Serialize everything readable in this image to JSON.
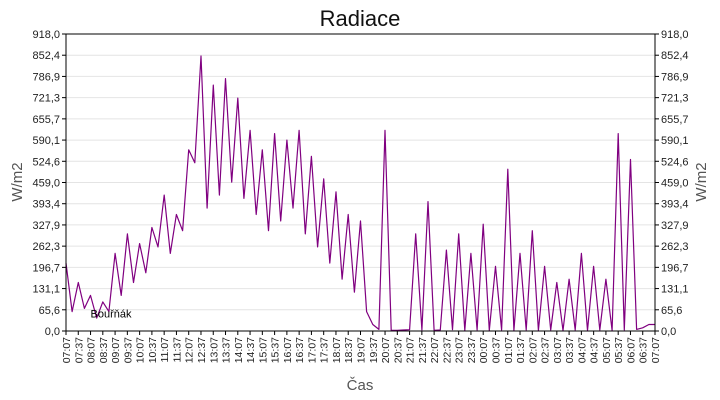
{
  "chart_data": {
    "type": "line",
    "title": "Radiace",
    "xlabel": "Čas",
    "ylabel": "W/m2",
    "ylabel_right": "W/m2",
    "ylim": [
      0,
      918
    ],
    "y_ticks": [
      "0,0",
      "65,6",
      "131,1",
      "196,7",
      "262,3",
      "327,9",
      "393,4",
      "459,0",
      "524,6",
      "590,1",
      "655,7",
      "721,3",
      "786,9",
      "852,4",
      "918,0"
    ],
    "x_ticks": [
      "07:07",
      "07:37",
      "08:07",
      "08:37",
      "09:07",
      "09:37",
      "10:07",
      "10:37",
      "11:07",
      "11:37",
      "12:07",
      "12:37",
      "13:07",
      "13:37",
      "14:07",
      "14:37",
      "15:07",
      "15:37",
      "16:07",
      "16:37",
      "17:07",
      "17:37",
      "18:07",
      "18:37",
      "19:07",
      "19:37",
      "20:07",
      "20:37",
      "21:07",
      "21:37",
      "22:07",
      "22:37",
      "23:07",
      "23:37",
      "00:07",
      "00:37",
      "01:07",
      "01:37",
      "02:07",
      "02:37",
      "03:07",
      "03:37",
      "04:07",
      "04:37",
      "05:07",
      "05:37",
      "06:07",
      "06:37",
      "07:07"
    ],
    "grid": true,
    "series": [
      {
        "color": "#800080",
        "x": [
          "07:07",
          "07:22",
          "07:37",
          "07:52",
          "08:07",
          "08:22",
          "08:37",
          "08:52",
          "09:07",
          "09:22",
          "09:37",
          "09:52",
          "10:07",
          "10:22",
          "10:37",
          "10:52",
          "11:07",
          "11:22",
          "11:37",
          "11:52",
          "12:07",
          "12:22",
          "12:37",
          "12:52",
          "13:07",
          "13:22",
          "13:37",
          "13:52",
          "14:07",
          "14:22",
          "14:37",
          "14:52",
          "15:07",
          "15:22",
          "15:37",
          "15:52",
          "16:07",
          "16:22",
          "16:37",
          "16:52",
          "17:07",
          "17:22",
          "17:37",
          "17:52",
          "18:07",
          "18:22",
          "18:37",
          "18:52",
          "19:07",
          "19:22",
          "19:37",
          "19:52",
          "20:07",
          "20:22",
          "20:37",
          "20:52",
          "21:07",
          "21:22",
          "21:37",
          "21:52",
          "22:07",
          "22:22",
          "22:37",
          "22:52",
          "23:07",
          "23:22",
          "23:37",
          "23:52",
          "00:07",
          "00:22",
          "00:37",
          "00:52",
          "01:07",
          "01:22",
          "01:37",
          "01:52",
          "02:07",
          "02:22",
          "02:37",
          "02:52",
          "03:07",
          "03:22",
          "03:37",
          "03:52",
          "04:07",
          "04:22",
          "04:37",
          "04:52",
          "05:07",
          "05:22",
          "05:37",
          "05:52",
          "06:07",
          "06:22",
          "06:37",
          "06:52",
          "07:07"
        ],
        "values": [
          210,
          60,
          150,
          70,
          110,
          40,
          90,
          60,
          240,
          110,
          300,
          150,
          270,
          180,
          320,
          260,
          420,
          240,
          360,
          310,
          560,
          520,
          850,
          380,
          760,
          420,
          780,
          460,
          720,
          410,
          620,
          360,
          560,
          310,
          610,
          340,
          590,
          380,
          620,
          300,
          540,
          260,
          470,
          210,
          430,
          160,
          360,
          120,
          340,
          60,
          20,
          5,
          620,
          2,
          2,
          3,
          4,
          300,
          3,
          400,
          2,
          3,
          250,
          4,
          300,
          2,
          240,
          3,
          330,
          2,
          200,
          3,
          500,
          2,
          240,
          3,
          310,
          2,
          200,
          3,
          150,
          2,
          160,
          3,
          240,
          2,
          200,
          3,
          160,
          2,
          610,
          3,
          530,
          5,
          10,
          20,
          20
        ]
      }
    ],
    "annotations": [
      {
        "text": "Bouřňák",
        "x": "08:07",
        "y": 30
      }
    ]
  }
}
